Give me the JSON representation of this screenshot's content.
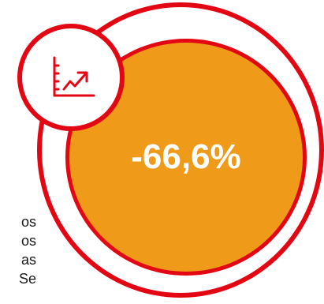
{
  "stat": {
    "value": "-66,6%"
  },
  "badge": {
    "icon": "chart-trend-icon"
  },
  "side_text": {
    "lines": [
      "os",
      "os",
      "as",
      "Se"
    ]
  },
  "colors": {
    "ring": "#e30613",
    "fill": "#f09a1a",
    "value_text": "#ffffff",
    "body_text": "#1a1a1a"
  }
}
